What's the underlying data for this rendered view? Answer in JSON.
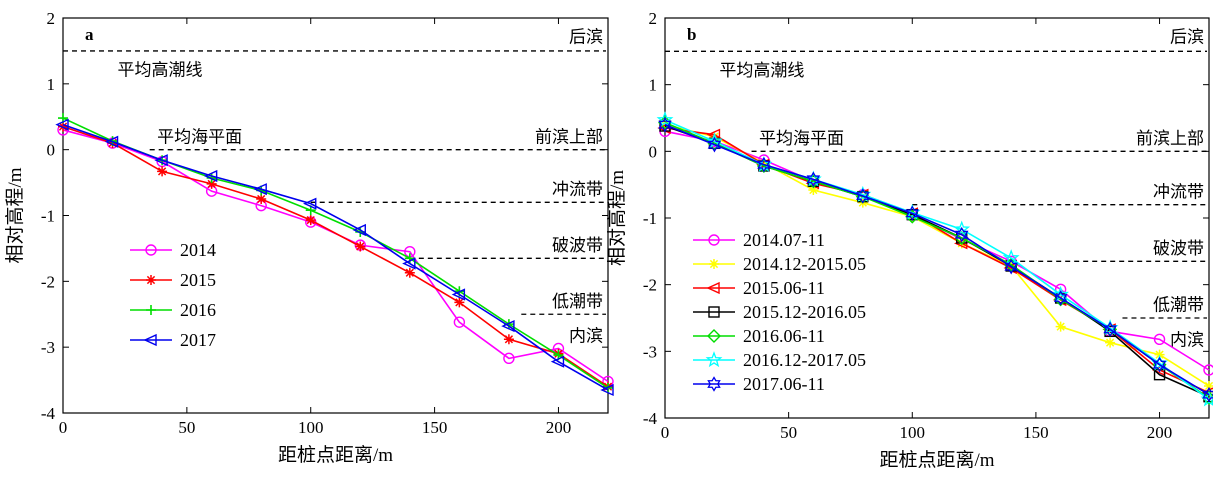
{
  "chart_data": [
    {
      "type": "line",
      "panel": "a",
      "xlabel": "距桩点距离/m",
      "ylabel": "相对高程/m",
      "xlim": [
        0,
        220
      ],
      "ylim": [
        -4,
        2
      ],
      "xticks": [
        0,
        50,
        100,
        150,
        200
      ],
      "yticks": [
        -4,
        -3,
        -2,
        -1,
        0,
        1,
        2
      ],
      "grid": false,
      "legend_position": "left-bottom",
      "reference_lines": [
        {
          "y": 1.5,
          "x_start": 0,
          "x_end": 220,
          "label": "平均高潮线",
          "label_x": 22,
          "label_y": 1.22,
          "label_anchor": "start"
        },
        {
          "y": 1.5,
          "x_start": 0,
          "x_end": 220,
          "label": "后滨",
          "label_x": 218,
          "label_y": 1.72,
          "label_anchor": "end",
          "line": false
        },
        {
          "y": 0.0,
          "x_start": 35,
          "x_end": 220,
          "label": "平均海平面",
          "label_x": 38,
          "label_y": 0.2,
          "label_anchor": "start"
        },
        {
          "y": 0.0,
          "x_start": 35,
          "x_end": 220,
          "label": "前滨上部",
          "label_x": 218,
          "label_y": 0.2,
          "label_anchor": "end",
          "line": false
        },
        {
          "y": -0.8,
          "x_start": 100,
          "x_end": 220,
          "label": "冲流带",
          "label_x": 218,
          "label_y": -0.6,
          "label_anchor": "end"
        },
        {
          "y": -1.65,
          "x_start": 140,
          "x_end": 220,
          "label": "破波带",
          "label_x": 218,
          "label_y": -1.45,
          "label_anchor": "end"
        },
        {
          "y": -2.5,
          "x_start": 185,
          "x_end": 220,
          "label": "低潮带",
          "label_x": 218,
          "label_y": -2.3,
          "label_anchor": "end"
        },
        {
          "y": -2.5,
          "x_start": 185,
          "x_end": 220,
          "label": "内滨",
          "label_x": 218,
          "label_y": -2.82,
          "label_anchor": "end",
          "line": false
        }
      ],
      "x": [
        0,
        20,
        40,
        60,
        80,
        100,
        120,
        140,
        160,
        180,
        200,
        220
      ],
      "series": [
        {
          "name": "2014",
          "color": "#ff00ff",
          "marker": "circle",
          "values": [
            0.3,
            0.1,
            -0.18,
            -0.63,
            -0.85,
            -1.1,
            -1.45,
            -1.55,
            -2.62,
            -3.17,
            -3.02,
            -3.52
          ]
        },
        {
          "name": "2015",
          "color": "#ff0000",
          "marker": "asterisk",
          "values": [
            0.35,
            0.1,
            -0.33,
            -0.52,
            -0.75,
            -1.07,
            -1.47,
            -1.87,
            -2.32,
            -2.88,
            -3.1,
            -3.6
          ]
        },
        {
          "name": "2016",
          "color": "#00dd00",
          "marker": "plus",
          "values": [
            0.48,
            0.13,
            -0.16,
            -0.43,
            -0.62,
            -0.92,
            -1.25,
            -1.65,
            -2.15,
            -2.65,
            -3.12,
            -3.62
          ]
        },
        {
          "name": "2017",
          "color": "#0000ee",
          "marker": "triangle-left",
          "values": [
            0.38,
            0.12,
            -0.16,
            -0.4,
            -0.6,
            -0.82,
            -1.22,
            -1.73,
            -2.2,
            -2.68,
            -3.22,
            -3.65
          ]
        }
      ]
    },
    {
      "type": "line",
      "panel": "b",
      "xlabel": "距桩点距离/m",
      "ylabel": "相对高程/m",
      "xlim": [
        0,
        220
      ],
      "ylim": [
        -4,
        2
      ],
      "xticks": [
        0,
        50,
        100,
        150,
        200
      ],
      "yticks": [
        -4,
        -3,
        -2,
        -1,
        0,
        1,
        2
      ],
      "grid": false,
      "legend_position": "left-bottom",
      "reference_lines": [
        {
          "y": 1.5,
          "x_start": 0,
          "x_end": 220,
          "label": "平均高潮线",
          "label_x": 22,
          "label_y": 1.22,
          "label_anchor": "start"
        },
        {
          "y": 1.5,
          "x_start": 0,
          "x_end": 220,
          "label": "后滨",
          "label_x": 218,
          "label_y": 1.72,
          "label_anchor": "end",
          "line": false
        },
        {
          "y": 0.0,
          "x_start": 35,
          "x_end": 220,
          "label": "平均海平面",
          "label_x": 38,
          "label_y": 0.2,
          "label_anchor": "start"
        },
        {
          "y": 0.0,
          "x_start": 35,
          "x_end": 220,
          "label": "前滨上部",
          "label_x": 218,
          "label_y": 0.2,
          "label_anchor": "end",
          "line": false
        },
        {
          "y": -0.8,
          "x_start": 100,
          "x_end": 220,
          "label": "冲流带",
          "label_x": 218,
          "label_y": -0.6,
          "label_anchor": "end"
        },
        {
          "y": -1.65,
          "x_start": 140,
          "x_end": 220,
          "label": "破波带",
          "label_x": 218,
          "label_y": -1.45,
          "label_anchor": "end"
        },
        {
          "y": -2.5,
          "x_start": 185,
          "x_end": 220,
          "label": "低潮带",
          "label_x": 218,
          "label_y": -2.3,
          "label_anchor": "end"
        },
        {
          "y": -2.5,
          "x_start": 185,
          "x_end": 220,
          "label": "内滨",
          "label_x": 218,
          "label_y": -2.82,
          "label_anchor": "end",
          "line": false
        }
      ],
      "x": [
        0,
        20,
        40,
        60,
        80,
        100,
        120,
        140,
        160,
        180,
        200,
        220
      ],
      "series": [
        {
          "name": "2014.07-11",
          "color": "#ff00ff",
          "marker": "circle",
          "values": [
            0.3,
            0.15,
            -0.13,
            -0.45,
            -0.65,
            -0.95,
            -1.32,
            -1.65,
            -2.07,
            -2.7,
            -2.82,
            -3.28
          ]
        },
        {
          "name": "2014.12-2015.05",
          "color": "#ffff00",
          "marker": "asterisk",
          "values": [
            0.4,
            0.22,
            -0.18,
            -0.58,
            -0.77,
            -0.98,
            -1.38,
            -1.72,
            -2.63,
            -2.87,
            -3.05,
            -3.52
          ]
        },
        {
          "name": "2015.06-11",
          "color": "#ff0000",
          "marker": "triangle-left",
          "values": [
            0.35,
            0.25,
            -0.2,
            -0.48,
            -0.65,
            -0.93,
            -1.38,
            -1.75,
            -2.23,
            -2.67,
            -3.28,
            -3.62
          ]
        },
        {
          "name": "2015.12-2016.05",
          "color": "#000000",
          "marker": "square",
          "values": [
            0.38,
            0.12,
            -0.22,
            -0.45,
            -0.68,
            -0.95,
            -1.3,
            -1.72,
            -2.2,
            -2.7,
            -3.35,
            -3.68
          ]
        },
        {
          "name": "2016.06-11",
          "color": "#00dd00",
          "marker": "diamond",
          "values": [
            0.43,
            0.12,
            -0.22,
            -0.45,
            -0.68,
            -0.98,
            -1.3,
            -1.7,
            -2.22,
            -2.67,
            -3.2,
            -3.7
          ]
        },
        {
          "name": "2016.12-2017.05",
          "color": "#00ffff",
          "marker": "star",
          "values": [
            0.47,
            0.15,
            -0.2,
            -0.42,
            -0.65,
            -0.92,
            -1.17,
            -1.6,
            -2.15,
            -2.65,
            -3.18,
            -3.72
          ]
        },
        {
          "name": "2017.06-11",
          "color": "#0000ee",
          "marker": "hexagram",
          "values": [
            0.4,
            0.1,
            -0.2,
            -0.42,
            -0.67,
            -0.93,
            -1.25,
            -1.73,
            -2.2,
            -2.67,
            -3.2,
            -3.65
          ]
        }
      ]
    }
  ]
}
